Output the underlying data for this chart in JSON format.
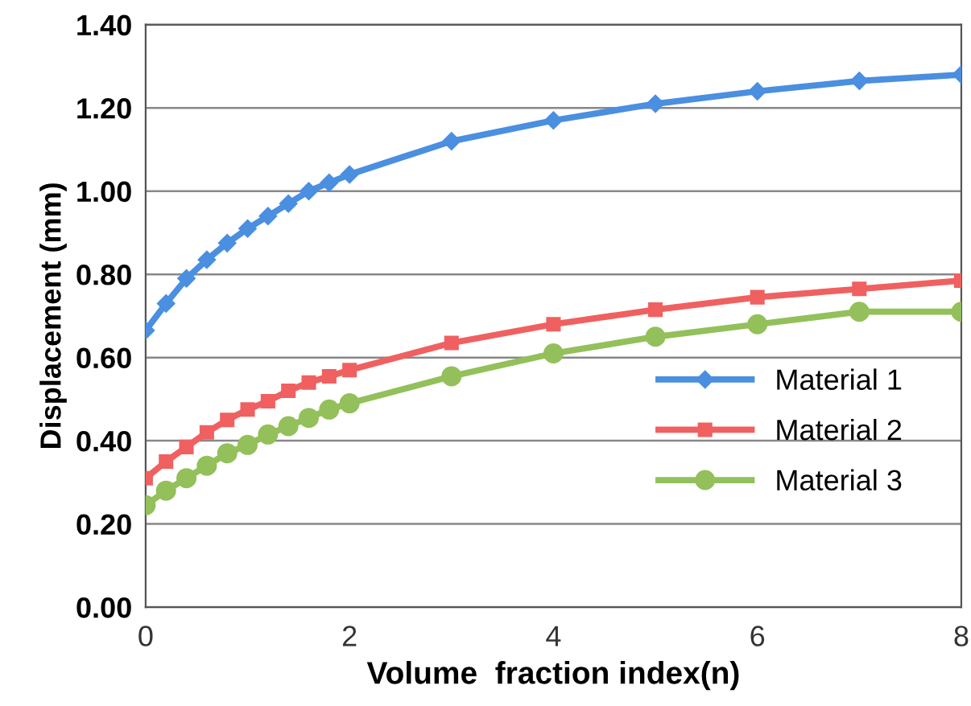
{
  "chart_data": {
    "type": "line",
    "xlabel": "Volume  fraction index(n)",
    "ylabel": "Displacement (mm)",
    "x": [
      0,
      0.2,
      0.4,
      0.6,
      0.8,
      1.0,
      1.2,
      1.4,
      1.6,
      1.8,
      2,
      3,
      4,
      5,
      6,
      7,
      8
    ],
    "series": [
      {
        "name": "Material 1",
        "color": "#4a8fe0",
        "marker": "diamond",
        "values": [
          0.665,
          0.73,
          0.79,
          0.835,
          0.875,
          0.91,
          0.94,
          0.97,
          1.0,
          1.02,
          1.04,
          1.12,
          1.17,
          1.21,
          1.24,
          1.265,
          1.28
        ]
      },
      {
        "name": "Material 2",
        "color": "#f06060",
        "marker": "square",
        "values": [
          0.31,
          0.35,
          0.385,
          0.42,
          0.45,
          0.475,
          0.495,
          0.52,
          0.54,
          0.555,
          0.57,
          0.635,
          0.68,
          0.715,
          0.745,
          0.765,
          0.785
        ]
      },
      {
        "name": "Material 3",
        "color": "#93c05a",
        "marker": "circle",
        "values": [
          0.245,
          0.28,
          0.31,
          0.34,
          0.37,
          0.39,
          0.415,
          0.435,
          0.455,
          0.475,
          0.49,
          0.555,
          0.61,
          0.65,
          0.68,
          0.71,
          0.71
        ]
      }
    ],
    "xlim": [
      0,
      8
    ],
    "xticks": [
      0,
      2,
      4,
      6,
      8
    ],
    "ylim": [
      0,
      1.4
    ],
    "yticks": [
      {
        "value": 0,
        "label": "0.00"
      },
      {
        "value": 0.2,
        "label": "0.20"
      },
      {
        "value": 0.4,
        "label": "0.40"
      },
      {
        "value": 0.6,
        "label": "0.60"
      },
      {
        "value": 0.8,
        "label": "0.80"
      },
      {
        "value": 1.0,
        "label": "1.00"
      },
      {
        "value": 1.2,
        "label": "1.20"
      },
      {
        "value": 1.4,
        "label": "1.40"
      }
    ],
    "grid": "y",
    "legend": "center right",
    "line_style": "solid"
  }
}
